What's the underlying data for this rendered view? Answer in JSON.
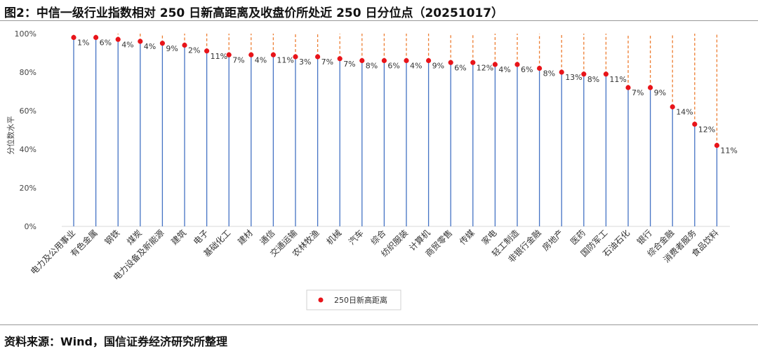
{
  "header": {
    "title": "图2：中信一级行业指数相对 250 日新高距离及收盘价所处近 250 日分位点（20251017）"
  },
  "footer": {
    "source": "资料来源：Wind，国信证券经济研究所整理"
  },
  "chart_data": {
    "type": "scatter",
    "title": "",
    "xlabel": "",
    "ylabel": "分位数水平",
    "ylim": [
      0,
      100
    ],
    "yticks": [
      "0%",
      "20%",
      "40%",
      "60%",
      "80%",
      "100%"
    ],
    "legend": {
      "position": "bottom-center",
      "label": "250日新高距离"
    },
    "colors": {
      "point": "#e8141a",
      "stem": "#4472c4",
      "gap": "#ed7d31"
    },
    "categories": [
      "电力及公用事业",
      "有色金属",
      "钢铁",
      "煤炭",
      "电力设备及新能源",
      "建筑",
      "电子",
      "基础化工",
      "建材",
      "通信",
      "交通运输",
      "农林牧渔",
      "机械",
      "汽车",
      "综合",
      "纺织服装",
      "计算机",
      "商贸零售",
      "传媒",
      "家电",
      "轻工制造",
      "非银行金融",
      "房地产",
      "医药",
      "国防军工",
      "石油石化",
      "银行",
      "综合金融",
      "消费者服务",
      "食品饮料"
    ],
    "series": [
      {
        "name": "250日新高距离",
        "percentile": [
          98,
          98,
          97,
          96,
          95,
          94,
          91,
          89,
          89,
          89,
          88,
          88,
          87,
          86,
          86,
          86,
          86,
          85,
          85,
          84,
          84,
          82,
          80,
          79,
          79,
          72,
          72,
          62,
          53,
          42
        ],
        "labels": [
          "1%",
          "6%",
          "4%",
          "4%",
          "9%",
          "2%",
          "11%",
          "7%",
          "4%",
          "11%",
          "3%",
          "7%",
          "7%",
          "8%",
          "6%",
          "4%",
          "9%",
          "6%",
          "12%",
          "4%",
          "6%",
          "8%",
          "13%",
          "8%",
          "11%",
          "7%",
          "9%",
          "14%",
          "12%",
          "11%"
        ]
      }
    ]
  }
}
